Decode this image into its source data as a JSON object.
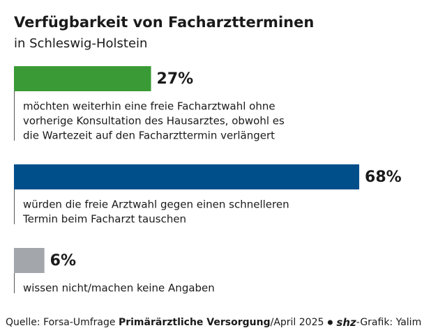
{
  "chart_data": {
    "type": "bar",
    "orientation": "horizontal",
    "title": "Verfügbarkeit von Facharztterminen",
    "subtitle": "in Schleswig-Holstein",
    "categories": [
      [
        "möchten weiterhin eine freie Facharztwahl ohne",
        "vorherige Konsultation des Hausarztes, obwohl es",
        "die Wartezeit auf den Facharzttermin verlängert"
      ],
      [
        "würden die freie Arztwahl gegen einen schnelleren",
        "Termin beim Facharzt tauschen"
      ],
      [
        "wissen nicht/machen keine Angaben"
      ]
    ],
    "values": [
      27,
      68,
      6
    ],
    "value_labels": [
      "27%",
      "68%",
      "6%"
    ],
    "colors": [
      "#3a9a35",
      "#004f8b",
      "#a3a7ab"
    ],
    "source": {
      "prefix": "Quelle: Forsa-Umfrage ",
      "bold": "Primärärztliche Versorgung",
      "date": "/April 2025",
      "logo": "shz",
      "suffix": "-Grafik: Yalim"
    }
  }
}
